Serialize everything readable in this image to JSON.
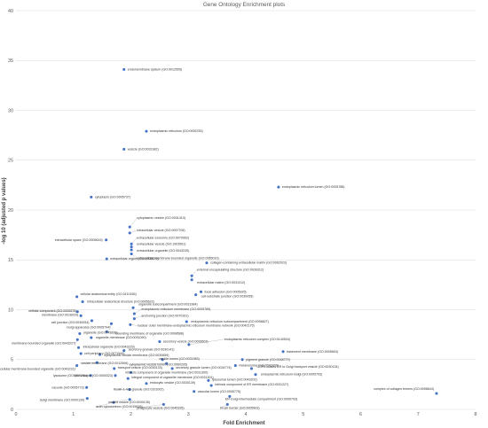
{
  "chart_data": {
    "type": "scatter",
    "title": "Gene Ontology Enrichment plots",
    "xlabel": "Fold Enrichment",
    "ylabel": "-log 10 (adjusted p values)",
    "xlim": [
      0,
      8
    ],
    "ylim": [
      0,
      40
    ],
    "x_ticks": [
      "0",
      "1",
      "2",
      "3",
      "4",
      "5",
      "6",
      "7",
      "8"
    ],
    "y_ticks": [
      "0",
      "5",
      "10",
      "15",
      "20",
      "25",
      "30",
      "35",
      "40"
    ],
    "grid": "horizontal",
    "colors": {
      "point": "#4472c4",
      "grid": "#d9d9d9",
      "text": "#595959"
    },
    "points": [
      {
        "label": "endomembrane system (GO:0012505)",
        "x": 1.88,
        "y": 34.1
      },
      {
        "label": "endoplasmic reticulum (GO:0005783)",
        "x": 2.27,
        "y": 27.9
      },
      {
        "label": "vesicle (GO:0031982)",
        "x": 1.88,
        "y": 26.1
      },
      {
        "label": "endoplasmic reticulum lumen (GO:0005788)",
        "x": 4.57,
        "y": 22.3
      },
      {
        "label": "cytoplasm (GO:0005737)",
        "x": 1.31,
        "y": 21.3
      },
      {
        "label": "cytoplasmic vesicle (GO:0031410)",
        "x": 1.98,
        "y": 18.3
      },
      {
        "label": "intracellular vesicle (GO:0097708)",
        "x": 1.98,
        "y": 17.7
      },
      {
        "label": "extracellular space (GO:0005615)",
        "x": 1.57,
        "y": 17.0
      },
      {
        "label": "extracellular exosome (GO:0070062)",
        "x": 2.01,
        "y": 16.6
      },
      {
        "label": "extracellular vesicle (GO:1903561)",
        "x": 2.01,
        "y": 16.3
      },
      {
        "label": "extracellular organelle (GO:0043230)",
        "x": 2.01,
        "y": 16.0
      },
      {
        "label": "extracellular membrane-bounded organelle (GO:0065010)",
        "x": 2.01,
        "y": 15.6
      },
      {
        "label": "extracellular region (GO:0005576)",
        "x": 1.58,
        "y": 15.1
      },
      {
        "label": "collagen-containing extracellular matrix (GO:0062023)",
        "x": 3.32,
        "y": 14.7
      },
      {
        "label": "external encapsulating structure (GO:0030312)",
        "x": 3.06,
        "y": 13.4
      },
      {
        "label": "extracellular matrix (GO:0031012)",
        "x": 3.06,
        "y": 13.0
      },
      {
        "label": "focal adhesion (GO:0005925)",
        "x": 3.22,
        "y": 11.8
      },
      {
        "label": "cell-substrate junction (GO:0030055)",
        "x": 3.13,
        "y": 11.5
      },
      {
        "label": "cellular anatomical entity (GO:0110165)",
        "x": 1.06,
        "y": 11.3
      },
      {
        "label": "intracellular anatomical structure (GO:0005622)",
        "x": 1.16,
        "y": 10.8
      },
      {
        "label": "organelle subcompartment (GO:0031984)",
        "x": 2.04,
        "y": 10.2
      },
      {
        "label": "cellular component (GO:0005575)",
        "x": 1.07,
        "y": 9.8
      },
      {
        "label": "endoplasmic reticulum membrane (GO:0005789)",
        "x": 2.06,
        "y": 9.6
      },
      {
        "label": "membrane (GO:0016020)",
        "x": 1.13,
        "y": 9.4
      },
      {
        "label": "anchoring junction (GO:0070161)",
        "x": 2.06,
        "y": 9.1
      },
      {
        "label": "cell junction (GO:0030054)",
        "x": 1.32,
        "y": 8.9
      },
      {
        "label": "Golgi apparatus (GO:0005794)",
        "x": 1.66,
        "y": 8.6
      },
      {
        "label": "nuclear outer membrane-endoplasmic reticulum membrane network (GO:0042175)",
        "x": 1.99,
        "y": 8.5
      },
      {
        "label": "endoplasmic reticulum subcompartment (GO:0098827)",
        "x": 2.97,
        "y": 8.8
      },
      {
        "label": "bounding membrane of organelle (GO:0098588)",
        "x": 1.58,
        "y": 7.8
      },
      {
        "label": "organelle (GO:0043226)",
        "x": 1.11,
        "y": 7.6
      },
      {
        "label": "organelle membrane (GO:0031090)",
        "x": 1.31,
        "y": 7.2
      },
      {
        "label": "membrane-bounded organelle (GO:0043227)",
        "x": 1.07,
        "y": 7.0
      },
      {
        "label": "secretory vesicle (GO:0099503)",
        "x": 2.5,
        "y": 6.8
      },
      {
        "label": "endoplasmic reticulum complex (GO:0140534)",
        "x": 3.01,
        "y": 6.5
      },
      {
        "label": "intracellular organelle (GO:0043229)",
        "x": 1.09,
        "y": 6.2
      },
      {
        "label": "secretory granule (GO:0030141)",
        "x": 1.88,
        "y": 5.9
      },
      {
        "label": "basement membrane (GO:0005604)",
        "x": 4.65,
        "y": 5.8
      },
      {
        "label": "cell periphery (GO:0071944)",
        "x": 1.13,
        "y": 5.6
      },
      {
        "label": "cytoplasmic vesicle membrane (GO:0030659)",
        "x": 1.46,
        "y": 5.5
      },
      {
        "label": "vesicle membrane (GO:0012506)",
        "x": 1.41,
        "y": 4.7
      },
      {
        "label": "vesicle lumen (GO:0031983)",
        "x": 2.55,
        "y": 5.0
      },
      {
        "label": "pigment granule (GO:0048770)",
        "x": 3.94,
        "y": 5.0
      },
      {
        "label": "cytoplasmic vesicle lumen (GO:0060205)",
        "x": 2.62,
        "y": 4.6
      },
      {
        "label": "melanosome (GO:0042470)",
        "x": 3.82,
        "y": 4.4
      },
      {
        "label": "intracellular membrane-bounded organelle (GO:0043231)",
        "x": 1.06,
        "y": 4.4
      },
      {
        "label": "transport vesicle (GO:0030133)",
        "x": 1.71,
        "y": 4.1
      },
      {
        "label": "secretory granule lumen (GO:0034774)",
        "x": 2.72,
        "y": 4.1
      },
      {
        "label": "COPII-coated ER to Golgi transport vesicle (GO:0030134)",
        "x": 4.1,
        "y": 4.1
      },
      {
        "label": "intrinsic component of organelle membrane (GO:0031300)",
        "x": 2.0,
        "y": 3.7
      },
      {
        "label": "endoplasmic reticulum-Golgi (GO:0005793)",
        "x": 4.17,
        "y": 3.5
      },
      {
        "label": "lysosome (GO:0005764)",
        "x": 1.3,
        "y": 3.4
      },
      {
        "label": "lytic vacuole (GO:0000323)",
        "x": 1.73,
        "y": 3.4
      },
      {
        "label": "integral component of organelle membrane (GO:0031301)",
        "x": 1.95,
        "y": 3.1
      },
      {
        "label": "lysosomal lumen (GO:0043202)",
        "x": 3.35,
        "y": 2.9
      },
      {
        "label": "endocytic vesicle (GO:0030139)",
        "x": 2.27,
        "y": 2.6
      },
      {
        "label": "intrinsic component of ER membrane (GO:0031227)",
        "x": 3.4,
        "y": 2.4
      },
      {
        "label": "vacuole (GO:0005773)",
        "x": 1.23,
        "y": 2.2
      },
      {
        "label": "ficolin-1-rich granule (GO:0101002)",
        "x": 1.98,
        "y": 2.0
      },
      {
        "label": "vacuolar lumen (GO:0005775)",
        "x": 3.1,
        "y": 1.8
      },
      {
        "label": "complex of collagen trimers (GO:0098644)",
        "x": 7.32,
        "y": 1.6
      },
      {
        "label": "ER-Golgi intermediate compartment (GO:0005793)",
        "x": 3.72,
        "y": 1.3
      },
      {
        "label": "Golgi membrane (GO:0000139)",
        "x": 1.24,
        "y": 1.1
      },
      {
        "label": "coated vesicle (GO:0030135)",
        "x": 1.98,
        "y": 1.0
      },
      {
        "label": "actin cytoskeleton (GO:0015629)",
        "x": 1.7,
        "y": 0.7
      },
      {
        "label": "phagocytic vesicle (GO:0045335)",
        "x": 2.57,
        "y": 0.5
      },
      {
        "label": "brush border (GO:0005903)",
        "x": 3.68,
        "y": 0.5
      }
    ]
  }
}
